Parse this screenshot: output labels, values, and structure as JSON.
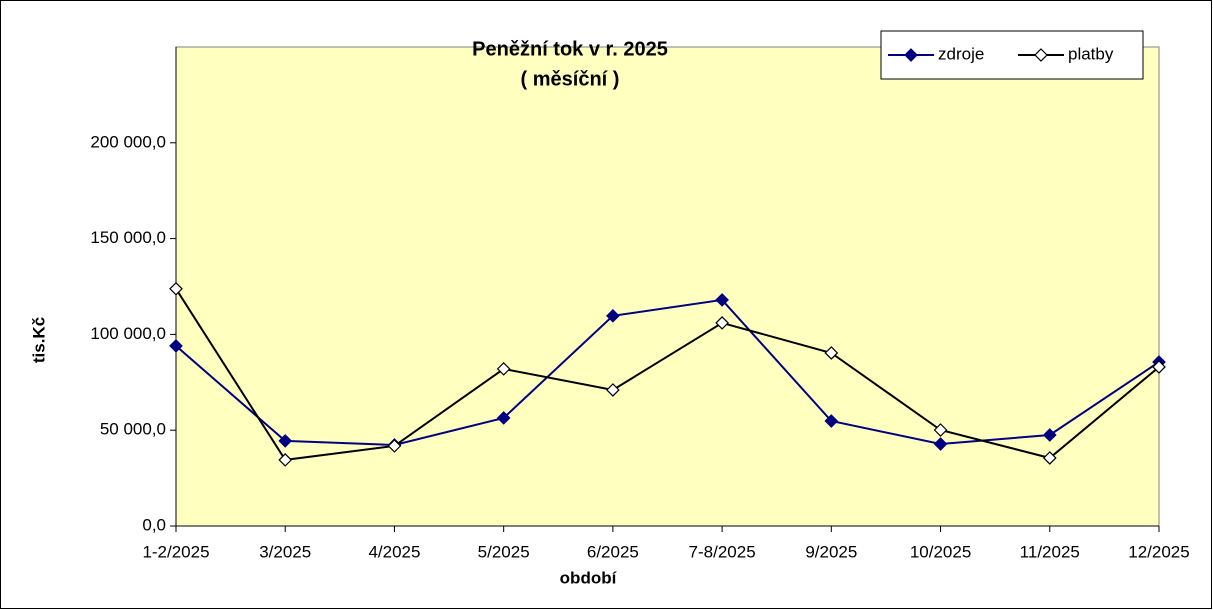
{
  "chart_data": {
    "type": "line",
    "title": [
      "Peněžní tok v r. 2025",
      "( měsíční )"
    ],
    "x_label": "období",
    "y_label": "tis.Kč",
    "categories": [
      "1-2/2025",
      "3/2025",
      "4/2025",
      "5/2025",
      "6/2025",
      "7-8/2025",
      "9/2025",
      "10/2025",
      "11/2025",
      "12/2025"
    ],
    "series": [
      {
        "name": "zdroje",
        "color": "#000080",
        "marker_fill": "#000080",
        "values": [
          94000,
          44400,
          42300,
          56400,
          109700,
          118000,
          54800,
          42800,
          47500,
          85600
        ]
      },
      {
        "name": "platby",
        "color": "#000000",
        "marker_fill": "#ffffff",
        "values": [
          123800,
          34500,
          41800,
          82000,
          71000,
          106000,
          90300,
          50100,
          35500,
          83000
        ]
      }
    ],
    "ylim": [
      0,
      250000
    ],
    "yticks": [
      {
        "value": 0,
        "label": "0,0"
      },
      {
        "value": 50000,
        "label": "50 000,0"
      },
      {
        "value": 100000,
        "label": "100 000,0"
      },
      {
        "value": 150000,
        "label": "150 000,0"
      },
      {
        "value": 200000,
        "label": "200 000,0"
      }
    ],
    "plot_background": "#ffffc0",
    "legend": "top-right"
  }
}
